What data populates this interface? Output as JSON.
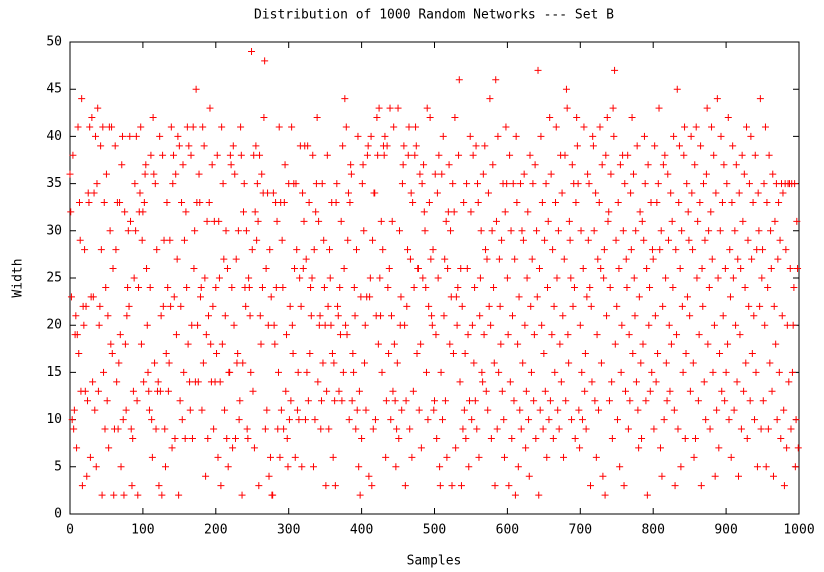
{
  "chart_data": {
    "type": "scatter",
    "title": "Distribution of 1000 Random Networks --- Set B",
    "xlabel": "Samples",
    "ylabel": "Width",
    "color": "#ff0000",
    "xlim": [
      0,
      1000
    ],
    "xticks": [
      0,
      100,
      200,
      300,
      400,
      500,
      600,
      700,
      800,
      900,
      1000
    ],
    "ylim": [
      0,
      50
    ],
    "yticks": [
      0,
      5,
      10,
      15,
      20,
      25,
      30,
      35,
      40,
      45,
      50
    ],
    "grid": false,
    "values": [
      36,
      32,
      23,
      10,
      38,
      9,
      11,
      19,
      21,
      7,
      19,
      41,
      17,
      33,
      29,
      13,
      44,
      3,
      22,
      20,
      28,
      13,
      22,
      4,
      12,
      34,
      33,
      41,
      6,
      23,
      42,
      14,
      23,
      34,
      11,
      40,
      5,
      35,
      43,
      13,
      20,
      22,
      39,
      28,
      2,
      41,
      15,
      33,
      9,
      24,
      36,
      12,
      21,
      7,
      41,
      30,
      18,
      41,
      17,
      26,
      2,
      9,
      39,
      28,
      14,
      33,
      9,
      16,
      33,
      19,
      5,
      37,
      40,
      10,
      2,
      32,
      18,
      11,
      21,
      24,
      30,
      22,
      40,
      31,
      9,
      3,
      8,
      13,
      25,
      35,
      30,
      40,
      12,
      2,
      24,
      32,
      34,
      41,
      18,
      29,
      32,
      14,
      33,
      36,
      37,
      26,
      20,
      15,
      13,
      11,
      24,
      38,
      10,
      6,
      42,
      36,
      16,
      35,
      9,
      28,
      13,
      14,
      3,
      40,
      13,
      21,
      2,
      38,
      22,
      29,
      9,
      5,
      17,
      33,
      24,
      13,
      16,
      29,
      22,
      41,
      7,
      35,
      38,
      23,
      8,
      36,
      19,
      27,
      40,
      2,
      39,
      12,
      22,
      33,
      10,
      37,
      15,
      29,
      8,
      32,
      24,
      41,
      18,
      39,
      14,
      11,
      38,
      20,
      8,
      41,
      26,
      30,
      14,
      45,
      33,
      20,
      14,
      36,
      33,
      23,
      24,
      11,
      41,
      16,
      39,
      25,
      4,
      19,
      31,
      8,
      21,
      33,
      43,
      18,
      14,
      37,
      22,
      9,
      31,
      14,
      24,
      17,
      38,
      6,
      31,
      25,
      14,
      3,
      41,
      18,
      35,
      27,
      11,
      21,
      30,
      8,
      26,
      5,
      15,
      15,
      38,
      37,
      24,
      7,
      39,
      20,
      36,
      8,
      27,
      16,
      17,
      30,
      10,
      12,
      41,
      38,
      2,
      16,
      32,
      35,
      24,
      22,
      30,
      9,
      8,
      25,
      24,
      21,
      15,
      49,
      28,
      13,
      38,
      7,
      32,
      39,
      29,
      35,
      31,
      3,
      38,
      21,
      18,
      36,
      24,
      34,
      42,
      48,
      9,
      26,
      11,
      34,
      20,
      4,
      28,
      6,
      23,
      2,
      2,
      34,
      20,
      18,
      33,
      24,
      31,
      9,
      15,
      41,
      6,
      33,
      11,
      29,
      24,
      9,
      33,
      37,
      13,
      19,
      8,
      5,
      35,
      10,
      22,
      12,
      41,
      20,
      17,
      35,
      26,
      6,
      35,
      28,
      11,
      15,
      10,
      25,
      39,
      22,
      5,
      34,
      26,
      31,
      39,
      10,
      27,
      15,
      39,
      12,
      33,
      17,
      24,
      21,
      25,
      38,
      5,
      28,
      10,
      32,
      35,
      42,
      14,
      31,
      20,
      21,
      9,
      12,
      35,
      16,
      29,
      24,
      20,
      3,
      13,
      38,
      22,
      9,
      28,
      25,
      20,
      33,
      17,
      6,
      16,
      12,
      3,
      33,
      35,
      22,
      21,
      13,
      24,
      19,
      31,
      12,
      39,
      15,
      26,
      44,
      20,
      41,
      19,
      29,
      34,
      10,
      33,
      37,
      36,
      12,
      17,
      15,
      24,
      21,
      9,
      28,
      11,
      40,
      5,
      13,
      2,
      23,
      8,
      35,
      37,
      30,
      16,
      20,
      11,
      23,
      38,
      39,
      4,
      23,
      25,
      40,
      3,
      29,
      9,
      34,
      34,
      10,
      21,
      42,
      38,
      18,
      43,
      25,
      21,
      31,
      15,
      28,
      39,
      38,
      40,
      6,
      12,
      39,
      24,
      17,
      26,
      43,
      10,
      21,
      31,
      13,
      41,
      18,
      12,
      5,
      9,
      16,
      43,
      8,
      30,
      20,
      23,
      11,
      35,
      37,
      39,
      20,
      3,
      12,
      22,
      28,
      38,
      41,
      9,
      27,
      34,
      6,
      33,
      13,
      24,
      38,
      41,
      39,
      17,
      26,
      26,
      11,
      36,
      18,
      7,
      35,
      25,
      37,
      32,
      30,
      24,
      15,
      43,
      10,
      22,
      33,
      42,
      27,
      21,
      20,
      28,
      11,
      12,
      36,
      19,
      8,
      34,
      25,
      38,
      5,
      3,
      15,
      36,
      10,
      40,
      21,
      27,
      12,
      31,
      6,
      26,
      32,
      37,
      18,
      30,
      23,
      3,
      35,
      17,
      32,
      42,
      7,
      23,
      20,
      24,
      38,
      46,
      14,
      26,
      3,
      22,
      9,
      33,
      11,
      17,
      8,
      35,
      26,
      19,
      5,
      12,
      40,
      32,
      10,
      20,
      38,
      16,
      24,
      12,
      39,
      9,
      35,
      33,
      6,
      21,
      25,
      30,
      15,
      14,
      36,
      19,
      39,
      28,
      13,
      27,
      11,
      34,
      22,
      44,
      20,
      8,
      30,
      37,
      24,
      16,
      3,
      46,
      31,
      9,
      40,
      15,
      27,
      22,
      18,
      29,
      13,
      35,
      10,
      6,
      32,
      41,
      35,
      25,
      19,
      3,
      38,
      14,
      30,
      8,
      21,
      35,
      12,
      27,
      2,
      40,
      33,
      18,
      5,
      23,
      11,
      35,
      9,
      30,
      16,
      29,
      36,
      20,
      7,
      13,
      25,
      32,
      10,
      4,
      38,
      22,
      15,
      27,
      35,
      12,
      19,
      37,
      8,
      30,
      23,
      47,
      2,
      26,
      11,
      40,
      20,
      33,
      9,
      17,
      29,
      13,
      35,
      6,
      24,
      31,
      10,
      42,
      12,
      36,
      19,
      28,
      8,
      22,
      15,
      33,
      41,
      25,
      11,
      30,
      9,
      18,
      38,
      14,
      34,
      21,
      6,
      27,
      38,
      12,
      45,
      43,
      19,
      16,
      31,
      29,
      25,
      10,
      37,
      22,
      35,
      24,
      8,
      33,
      42,
      39,
      35,
      11,
      7,
      20,
      30,
      15,
      10,
      26,
      41,
      13,
      17,
      9,
      23,
      36,
      29,
      35,
      24,
      3,
      22,
      14,
      40,
      39,
      30,
      12,
      34,
      6,
      19,
      27,
      11,
      33,
      41,
      26,
      16,
      37,
      4,
      25,
      28,
      2,
      38,
      21,
      42,
      31,
      32,
      12,
      24,
      36,
      14,
      8,
      43,
      40,
      47,
      18,
      29,
      22,
      10,
      33,
      26,
      5,
      37,
      15,
      20,
      38,
      30,
      3,
      35,
      13,
      27,
      24,
      38,
      9,
      19,
      12,
      34,
      28,
      42,
      17,
      36,
      25,
      21,
      30,
      14,
      39,
      11,
      7,
      23,
      32,
      16,
      8,
      31,
      18,
      29,
      40,
      35,
      12,
      26,
      2,
      37,
      20,
      24,
      13,
      33,
      15,
      28,
      27,
      9,
      39,
      21,
      14,
      33,
      17,
      35,
      43,
      28,
      7,
      30,
      4,
      22,
      37,
      10,
      38,
      25,
      16,
      12,
      36,
      29,
      20,
      13,
      34,
      18,
      31,
      24,
      40,
      11,
      3,
      28,
      19,
      45,
      9,
      33,
      39,
      26,
      5,
      30,
      22,
      15,
      38,
      41,
      8,
      17,
      35,
      23,
      32,
      29,
      21,
      13,
      40,
      34,
      28,
      16,
      6,
      37,
      8,
      41,
      25,
      31,
      12,
      19,
      33,
      39,
      3,
      26,
      22,
      35,
      14,
      29,
      10,
      36,
      43,
      18,
      30,
      24,
      9,
      32,
      41,
      27,
      15,
      38,
      20,
      4,
      34,
      11,
      44,
      25,
      7,
      17,
      30,
      40,
      13,
      33,
      21,
      37,
      12,
      26,
      15,
      35,
      18,
      42,
      10,
      28,
      23,
      6,
      33,
      39,
      25,
      11,
      30,
      20,
      37,
      14,
      27,
      4,
      34,
      19,
      26,
      9,
      38,
      31,
      13,
      36,
      24,
      16,
      41,
      8,
      29,
      22,
      35,
      12,
      40,
      27,
      17,
      33,
      21,
      10,
      38,
      15,
      28,
      5,
      34,
      30,
      22,
      44,
      9,
      25,
      28,
      12,
      35,
      20,
      41,
      5,
      33,
      24,
      9,
      38,
      16,
      30,
      26,
      13,
      36,
      4,
      22,
      31,
      18,
      35,
      10,
      27,
      33,
      15,
      29,
      8,
      35,
      21,
      34,
      11,
      3,
      35,
      28,
      7,
      20,
      35,
      14,
      35,
      26,
      9,
      35,
      15,
      20,
      24,
      35,
      5,
      10,
      31,
      26,
      7
    ]
  }
}
